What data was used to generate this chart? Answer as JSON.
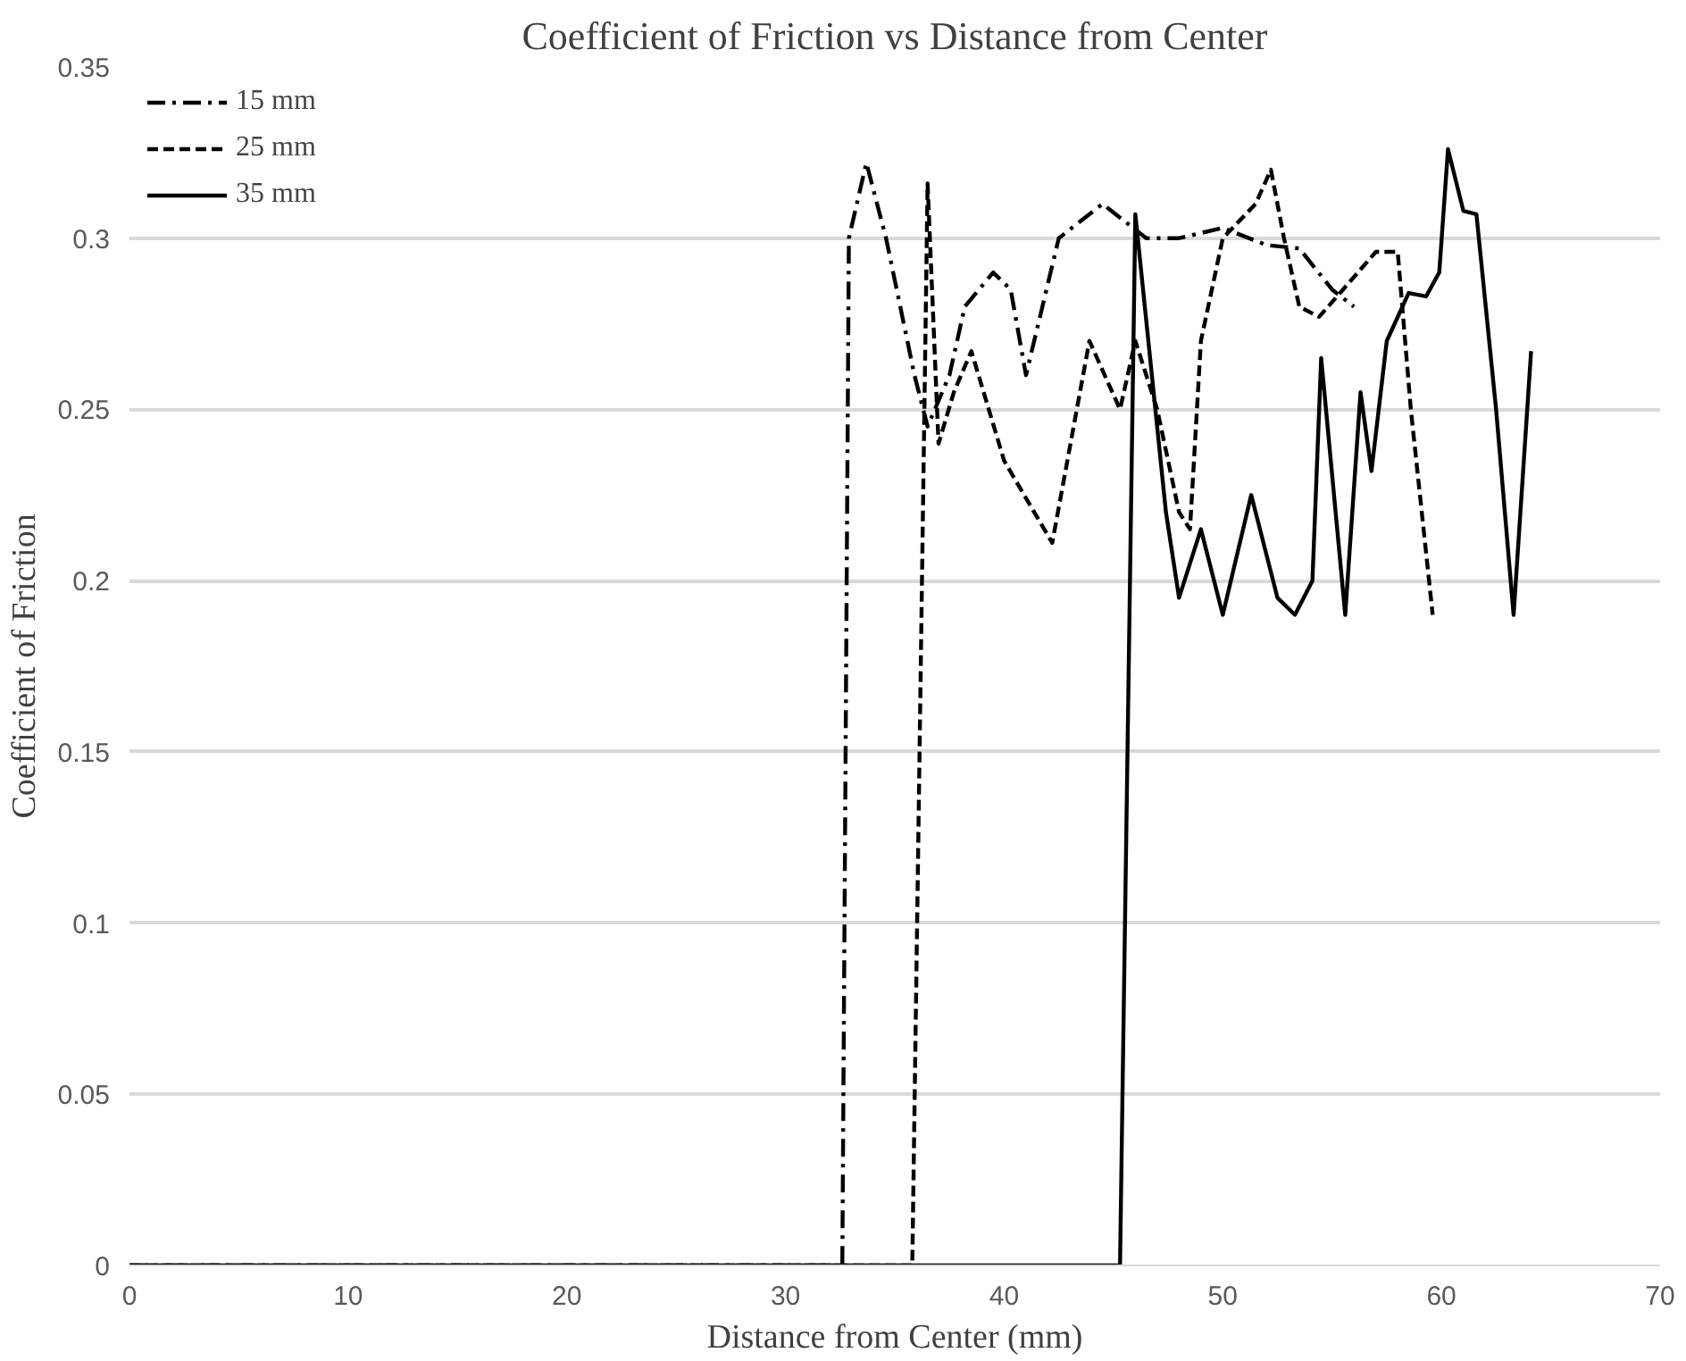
{
  "chart_data": {
    "type": "line",
    "title": "Coefficient of Friction vs Distance from Center",
    "xlabel": "Distance from Center (mm)",
    "ylabel": "Coefficient of Friction",
    "xlim": [
      0,
      70
    ],
    "xticks": [
      0,
      10,
      20,
      30,
      40,
      50,
      60,
      70
    ],
    "ylim": [
      0,
      0.35
    ],
    "yticks": [
      0,
      0.05,
      0.1,
      0.15,
      0.2,
      0.25,
      0.3,
      0.35
    ],
    "grid": "y",
    "legend": "top left",
    "marker": "none",
    "series": [
      {
        "name": "15 mm",
        "color": "#000000",
        "line_style": "dashdot",
        "x": [
          0,
          32.6,
          32.9,
          33.7,
          34.6,
          35.9,
          36.5,
          37.5,
          38.2,
          39.5,
          40.3,
          41,
          42.5,
          44.5,
          46.5,
          48,
          50,
          52,
          53.5,
          55,
          56
        ],
        "values": [
          0,
          0,
          0.3,
          0.322,
          0.3,
          0.26,
          0.245,
          0.26,
          0.28,
          0.29,
          0.285,
          0.26,
          0.3,
          0.31,
          0.3,
          0.3,
          0.303,
          0.298,
          0.297,
          0.285,
          0.28
        ]
      },
      {
        "name": "25 mm",
        "color": "#000000",
        "line_style": "dashed",
        "x": [
          0,
          35.8,
          36.5,
          37,
          37.7,
          38.5,
          40,
          42.2,
          43.9,
          45.3,
          46,
          47,
          48,
          48.5,
          49,
          50,
          51.5,
          52.2,
          52.8,
          53.5,
          54.4,
          55.5,
          57,
          58,
          58.6,
          59.6
        ],
        "values": [
          0,
          0,
          0.316,
          0.24,
          0.255,
          0.267,
          0.235,
          0.211,
          0.27,
          0.25,
          0.27,
          0.25,
          0.22,
          0.215,
          0.27,
          0.3,
          0.31,
          0.32,
          0.3,
          0.28,
          0.277,
          0.285,
          0.296,
          0.296,
          0.25,
          0.19
        ]
      },
      {
        "name": "35 mm",
        "color": "#000000",
        "line_style": "solid",
        "x": [
          0,
          45.3,
          46,
          47.4,
          48,
          49,
          50,
          51.3,
          52.5,
          53.3,
          54.1,
          54.5,
          55.6,
          56.3,
          56.8,
          57.5,
          58.5,
          59.3,
          59.9,
          60.3,
          61,
          61.6,
          62.5,
          63.3,
          64.1
        ],
        "values": [
          0,
          0,
          0.307,
          0.22,
          0.195,
          0.215,
          0.19,
          0.225,
          0.195,
          0.19,
          0.2,
          0.265,
          0.19,
          0.255,
          0.232,
          0.27,
          0.284,
          0.283,
          0.29,
          0.326,
          0.308,
          0.307,
          0.25,
          0.19,
          0.267
        ]
      }
    ]
  }
}
